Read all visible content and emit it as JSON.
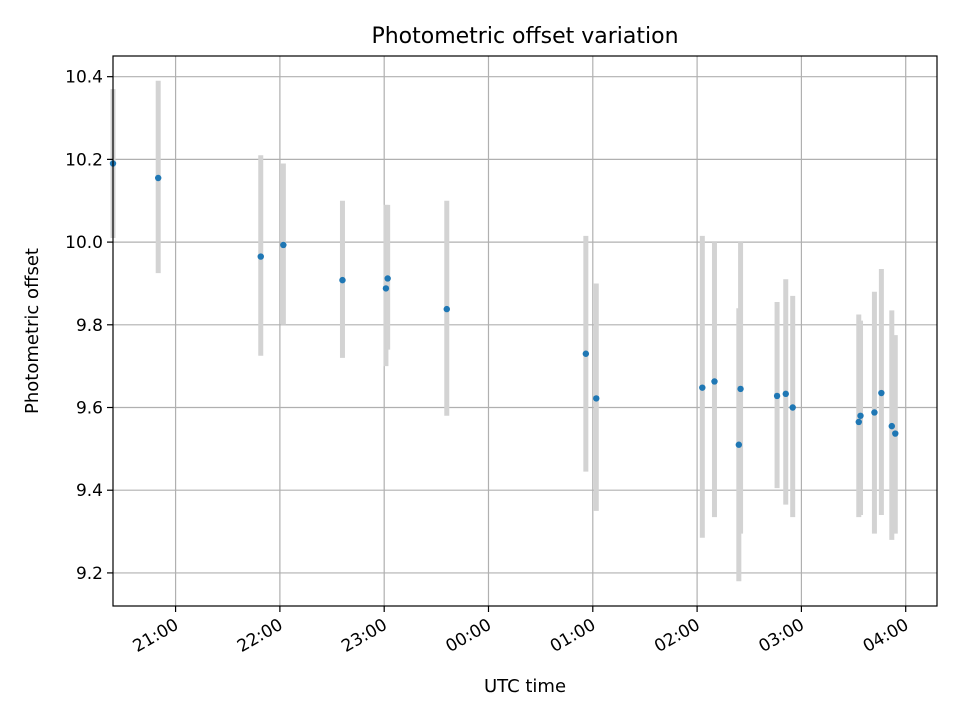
{
  "chart_data": {
    "type": "scatter",
    "title": "Photometric offset variation",
    "xlabel": "UTC time",
    "ylabel": "Photometric offset",
    "ylim": [
      9.12,
      10.45
    ],
    "xlim": [
      "20:24",
      "04:18"
    ],
    "x_day_rollover_after": "23:59",
    "xticks": [
      "21:00",
      "22:00",
      "23:00",
      "00:00",
      "01:00",
      "02:00",
      "03:00",
      "04:00"
    ],
    "yticks": [
      9.2,
      9.4,
      9.6,
      9.8,
      10.0,
      10.2,
      10.4
    ],
    "grid": true,
    "colors": {
      "point": "#1f77b4",
      "errorbar": "#d3d3d3",
      "grid": "#b0b0b0"
    },
    "points": [
      {
        "time": "20:24",
        "y": 10.19,
        "low": 10.01,
        "high": 10.37
      },
      {
        "time": "20:50",
        "y": 10.155,
        "low": 9.925,
        "high": 10.39
      },
      {
        "time": "21:49",
        "y": 9.965,
        "low": 9.725,
        "high": 10.21
      },
      {
        "time": "22:02",
        "y": 9.993,
        "low": 9.8,
        "high": 10.19
      },
      {
        "time": "22:36",
        "y": 9.908,
        "low": 9.72,
        "high": 10.1
      },
      {
        "time": "23:01",
        "y": 9.888,
        "low": 9.7,
        "high": 10.09
      },
      {
        "time": "23:02",
        "y": 9.912,
        "low": 9.74,
        "high": 10.09
      },
      {
        "time": "23:36",
        "y": 9.838,
        "low": 9.58,
        "high": 10.1
      },
      {
        "time": "00:56",
        "y": 9.73,
        "low": 9.445,
        "high": 10.015
      },
      {
        "time": "01:02",
        "y": 9.622,
        "low": 9.35,
        "high": 9.9
      },
      {
        "time": "02:03",
        "y": 9.648,
        "low": 9.285,
        "high": 10.015
      },
      {
        "time": "02:10",
        "y": 9.663,
        "low": 9.335,
        "high": 10.0
      },
      {
        "time": "02:24",
        "y": 9.51,
        "low": 9.18,
        "high": 9.84
      },
      {
        "time": "02:25",
        "y": 9.645,
        "low": 9.295,
        "high": 10.0
      },
      {
        "time": "02:46",
        "y": 9.628,
        "low": 9.405,
        "high": 9.855
      },
      {
        "time": "02:51",
        "y": 9.633,
        "low": 9.365,
        "high": 9.91
      },
      {
        "time": "02:55",
        "y": 9.6,
        "low": 9.335,
        "high": 9.87
      },
      {
        "time": "03:33",
        "y": 9.565,
        "low": 9.335,
        "high": 9.825
      },
      {
        "time": "03:34",
        "y": 9.58,
        "low": 9.34,
        "high": 9.81
      },
      {
        "time": "03:42",
        "y": 9.588,
        "low": 9.295,
        "high": 9.88
      },
      {
        "time": "03:46",
        "y": 9.635,
        "low": 9.34,
        "high": 9.935
      },
      {
        "time": "03:52",
        "y": 9.555,
        "low": 9.28,
        "high": 9.835
      },
      {
        "time": "03:54",
        "y": 9.537,
        "low": 9.295,
        "high": 9.775
      }
    ]
  }
}
